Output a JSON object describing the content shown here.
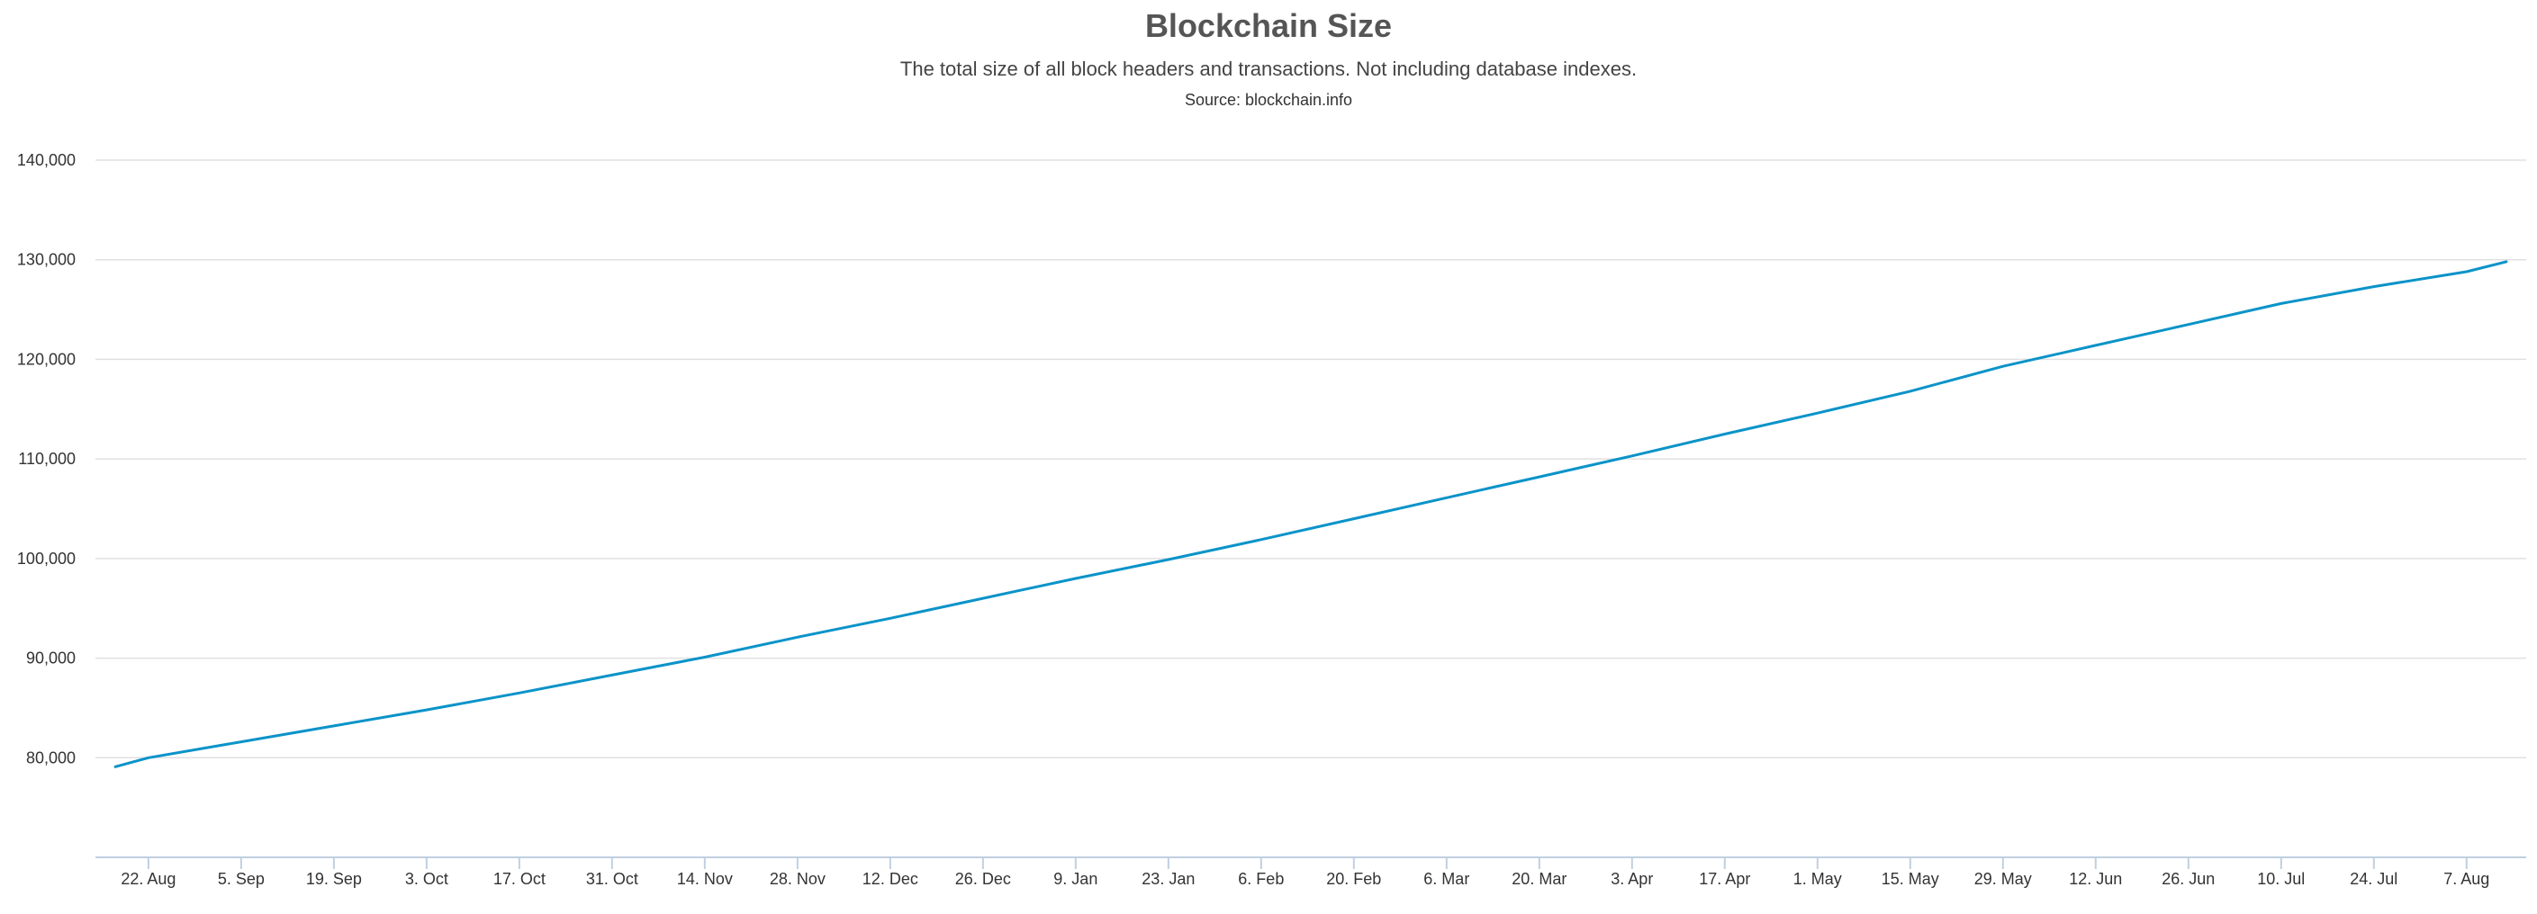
{
  "chart_data": {
    "type": "line",
    "title": "Blockchain Size",
    "subtitle": "The total size of all block headers and transactions. Not including database indexes.",
    "source": "Source: blockchain.info",
    "xlabel": "",
    "ylabel": "",
    "ylim": [
      70000,
      140000
    ],
    "xlim": [
      "2016-08-14",
      "2017-08-16"
    ],
    "yticks": [
      80000,
      90000,
      100000,
      110000,
      120000,
      130000,
      140000
    ],
    "ytick_labels": [
      "80,000",
      "90,000",
      "100,000",
      "110,000",
      "120,000",
      "130,000",
      "140,000"
    ],
    "xticks": [
      "2016-08-22",
      "2016-09-05",
      "2016-09-19",
      "2016-10-03",
      "2016-10-17",
      "2016-10-31",
      "2016-11-14",
      "2016-11-28",
      "2016-12-12",
      "2016-12-26",
      "2017-01-09",
      "2017-01-23",
      "2017-02-06",
      "2017-02-20",
      "2017-03-06",
      "2017-03-20",
      "2017-04-03",
      "2017-04-17",
      "2017-05-01",
      "2017-05-15",
      "2017-05-29",
      "2017-06-12",
      "2017-06-26",
      "2017-07-10",
      "2017-07-24",
      "2017-08-07"
    ],
    "xtick_labels": [
      "22. Aug",
      "5. Sep",
      "19. Sep",
      "3. Oct",
      "17. Oct",
      "31. Oct",
      "14. Nov",
      "28. Nov",
      "12. Dec",
      "26. Dec",
      "9. Jan",
      "23. Jan",
      "6. Feb",
      "20. Feb",
      "6. Mar",
      "20. Mar",
      "3. Apr",
      "17. Apr",
      "1. May",
      "15. May",
      "29. May",
      "12. Jun",
      "26. Jun",
      "10. Jul",
      "24. Jul",
      "7. Aug"
    ],
    "grid": true,
    "legend": "none",
    "colors": {
      "line": "#0a93c9",
      "grid": "#e0e0e0",
      "axis": "#c0d0e0"
    },
    "series": [
      {
        "x": [
          "2016-08-17",
          "2016-08-22",
          "2016-09-05",
          "2016-09-19",
          "2016-10-03",
          "2016-10-17",
          "2016-10-31",
          "2016-11-14",
          "2016-11-28",
          "2016-12-12",
          "2016-12-26",
          "2017-01-09",
          "2017-01-23",
          "2017-02-06",
          "2017-02-20",
          "2017-03-06",
          "2017-03-20",
          "2017-04-03",
          "2017-04-17",
          "2017-05-01",
          "2017-05-15",
          "2017-05-29",
          "2017-06-12",
          "2017-06-26",
          "2017-07-10",
          "2017-07-24",
          "2017-08-07",
          "2017-08-13"
        ],
        "values": [
          79100,
          80000,
          81600,
          83200,
          84800,
          86500,
          88300,
          90100,
          92100,
          94000,
          96000,
          98000,
          99900,
          101900,
          104000,
          106100,
          108200,
          110300,
          112500,
          114600,
          116800,
          119300,
          121400,
          123500,
          125600,
          127300,
          128800,
          129800
        ]
      }
    ]
  }
}
